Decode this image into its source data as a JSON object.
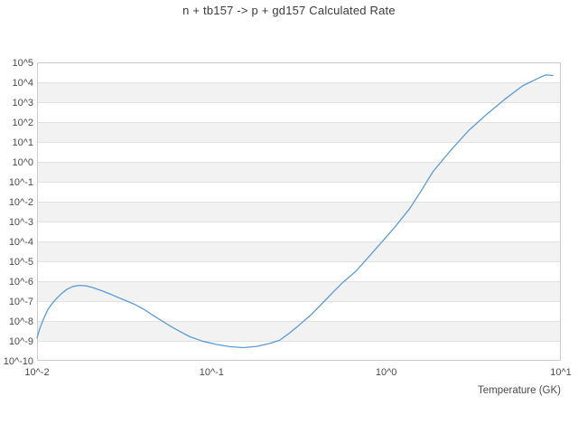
{
  "page": {
    "background_color": "#ffffff"
  },
  "chart_data": {
    "type": "line",
    "title": "n + tb157 -> p + gd157 Calculated Rate",
    "xlabel": "Temperature (GK)",
    "ylabel": "",
    "x_scale": "log",
    "y_scale": "log",
    "xlim_log10": [
      -2,
      1
    ],
    "ylim_log10": [
      -10,
      5
    ],
    "grid": "horizontal decade lines with alternating shaded bands",
    "legend_position": "none",
    "x_ticks": [
      {
        "log10": -2,
        "label": "10^-2"
      },
      {
        "log10": -1,
        "label": "10^-1"
      },
      {
        "log10": 0,
        "label": "10^0"
      },
      {
        "log10": 1,
        "label": "10^1"
      }
    ],
    "y_ticks": [
      {
        "log10": 5,
        "label": "10^5"
      },
      {
        "log10": 4,
        "label": "10^4"
      },
      {
        "log10": 3,
        "label": "10^3"
      },
      {
        "log10": 2,
        "label": "10^2"
      },
      {
        "log10": 1,
        "label": "10^1"
      },
      {
        "log10": 0,
        "label": "10^0"
      },
      {
        "log10": -1,
        "label": "10^-1"
      },
      {
        "log10": -2,
        "label": "10^-2"
      },
      {
        "log10": -3,
        "label": "10^-3"
      },
      {
        "log10": -4,
        "label": "10^-4"
      },
      {
        "log10": -5,
        "label": "10^-5"
      },
      {
        "log10": -6,
        "label": "10^-6"
      },
      {
        "log10": -7,
        "label": "10^-7"
      },
      {
        "log10": -8,
        "label": "10^-8"
      },
      {
        "log10": -9,
        "label": "10^-9"
      },
      {
        "log10": -10,
        "label": "10^-10"
      }
    ],
    "series": [
      {
        "name": "calculated rate",
        "color": "#5b9bd5",
        "points_T_GK_vs_log10_rate": [
          [
            0.01,
            -8.85
          ],
          [
            0.0104,
            -8.35
          ],
          [
            0.0109,
            -7.9
          ],
          [
            0.0115,
            -7.45
          ],
          [
            0.0122,
            -7.12
          ],
          [
            0.013,
            -6.85
          ],
          [
            0.0139,
            -6.6
          ],
          [
            0.0149,
            -6.4
          ],
          [
            0.016,
            -6.27
          ],
          [
            0.0175,
            -6.21
          ],
          [
            0.019,
            -6.23
          ],
          [
            0.0205,
            -6.3
          ],
          [
            0.023,
            -6.45
          ],
          [
            0.026,
            -6.63
          ],
          [
            0.029,
            -6.81
          ],
          [
            0.0325,
            -6.99
          ],
          [
            0.0365,
            -7.18
          ],
          [
            0.041,
            -7.42
          ],
          [
            0.0465,
            -7.73
          ],
          [
            0.052,
            -8.0
          ],
          [
            0.059,
            -8.3
          ],
          [
            0.0665,
            -8.55
          ],
          [
            0.075,
            -8.79
          ],
          [
            0.089,
            -9.02
          ],
          [
            0.107,
            -9.18
          ],
          [
            0.127,
            -9.29
          ],
          [
            0.152,
            -9.34
          ],
          [
            0.181,
            -9.28
          ],
          [
            0.217,
            -9.12
          ],
          [
            0.245,
            -8.97
          ],
          [
            0.276,
            -8.64
          ],
          [
            0.311,
            -8.27
          ],
          [
            0.372,
            -7.68
          ],
          [
            0.434,
            -7.08
          ],
          [
            0.5,
            -6.52
          ],
          [
            0.563,
            -6.07
          ],
          [
            0.67,
            -5.5
          ],
          [
            0.8,
            -4.74
          ],
          [
            0.96,
            -3.96
          ],
          [
            1.14,
            -3.2
          ],
          [
            1.37,
            -2.32
          ],
          [
            1.6,
            -1.4
          ],
          [
            1.85,
            -0.5
          ],
          [
            2.34,
            0.58
          ],
          [
            2.97,
            1.58
          ],
          [
            3.77,
            2.4
          ],
          [
            4.78,
            3.15
          ],
          [
            6.06,
            3.83
          ],
          [
            7.69,
            4.27
          ],
          [
            8.2,
            4.37
          ],
          [
            9.0,
            4.34
          ]
        ]
      }
    ],
    "style": {
      "band_fill": "#f2f2f2",
      "gridline_color": "#e2e2e2",
      "frame_color": "#cccccc",
      "tick_label_color": "#4a4a4a",
      "title_color": "#3b3b3b",
      "plot_background": "#ffffff"
    }
  }
}
